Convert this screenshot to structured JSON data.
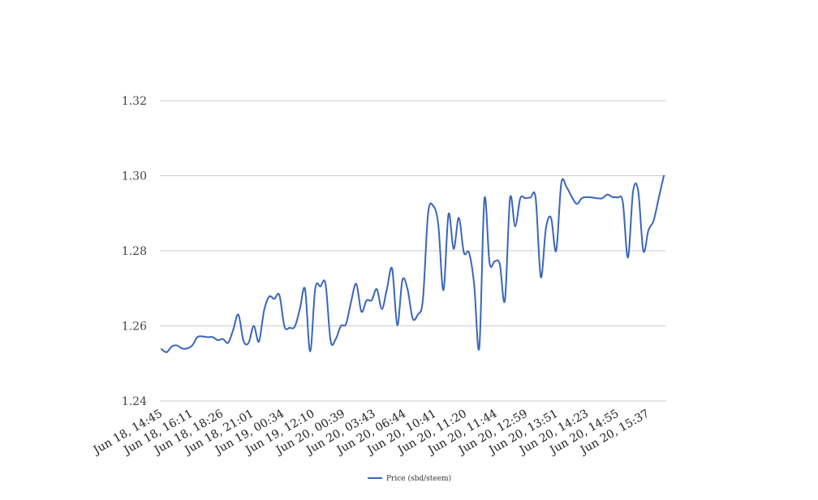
{
  "chart_data": {
    "type": "line",
    "x_tick_labels": [
      "Jun 18, 14:45",
      "Jun 18, 16:11",
      "Jun 18, 18:26",
      "Jun 18, 21:01",
      "Jun 19, 00:34",
      "Jun 19, 12:10",
      "Jun 20, 00:39",
      "Jun 20, 03:43",
      "Jun 20, 06:44",
      "Jun 20, 10:41",
      "Jun 20, 11:20",
      "Jun 20, 11:44",
      "Jun 20, 12:59",
      "Jun 20, 13:51",
      "Jun 20, 14:23",
      "Jun 20, 14:55",
      "Jun 20, 15:37"
    ],
    "y_tick_labels": [
      "1.24",
      "1.26",
      "1.28",
      "1.30",
      "1.32"
    ],
    "ylim": [
      1.24,
      1.32
    ],
    "grid": "horizontal",
    "legend_position": "bottom-center",
    "series": [
      {
        "name": "Price (sbd/steem)",
        "color": "#3a66b8",
        "values": [
          1.2538,
          1.253,
          1.2545,
          1.2548,
          1.254,
          1.254,
          1.2548,
          1.257,
          1.2572,
          1.257,
          1.257,
          1.2562,
          1.2565,
          1.2555,
          1.259,
          1.263,
          1.256,
          1.2555,
          1.26,
          1.2558,
          1.264,
          1.2678,
          1.2672,
          1.2682,
          1.2598,
          1.2595,
          1.2598,
          1.2645,
          1.2698,
          1.2532,
          1.27,
          1.2705,
          1.2712,
          1.256,
          1.2565,
          1.26,
          1.2605,
          1.2665,
          1.2712,
          1.2638,
          1.2668,
          1.2668,
          1.2698,
          1.2645,
          1.27,
          1.2752,
          1.2602,
          1.2722,
          1.2698,
          1.262,
          1.263,
          1.267,
          1.2898,
          1.292,
          1.287,
          1.2695,
          1.2898,
          1.2805,
          1.2888,
          1.2795,
          1.2795,
          1.271,
          1.2542,
          1.2938,
          1.2768,
          1.2772,
          1.2765,
          1.2668,
          1.294,
          1.2865,
          1.294,
          1.294,
          1.2942,
          1.294,
          1.273,
          1.286,
          1.2888,
          1.28,
          1.298,
          1.297,
          1.2945,
          1.2925,
          1.294,
          1.2943,
          1.2942,
          1.294,
          1.294,
          1.295,
          1.2943,
          1.2942,
          1.293,
          1.2782,
          1.2958,
          1.296,
          1.28,
          1.2855,
          1.288,
          1.294,
          1.3
        ]
      }
    ]
  }
}
